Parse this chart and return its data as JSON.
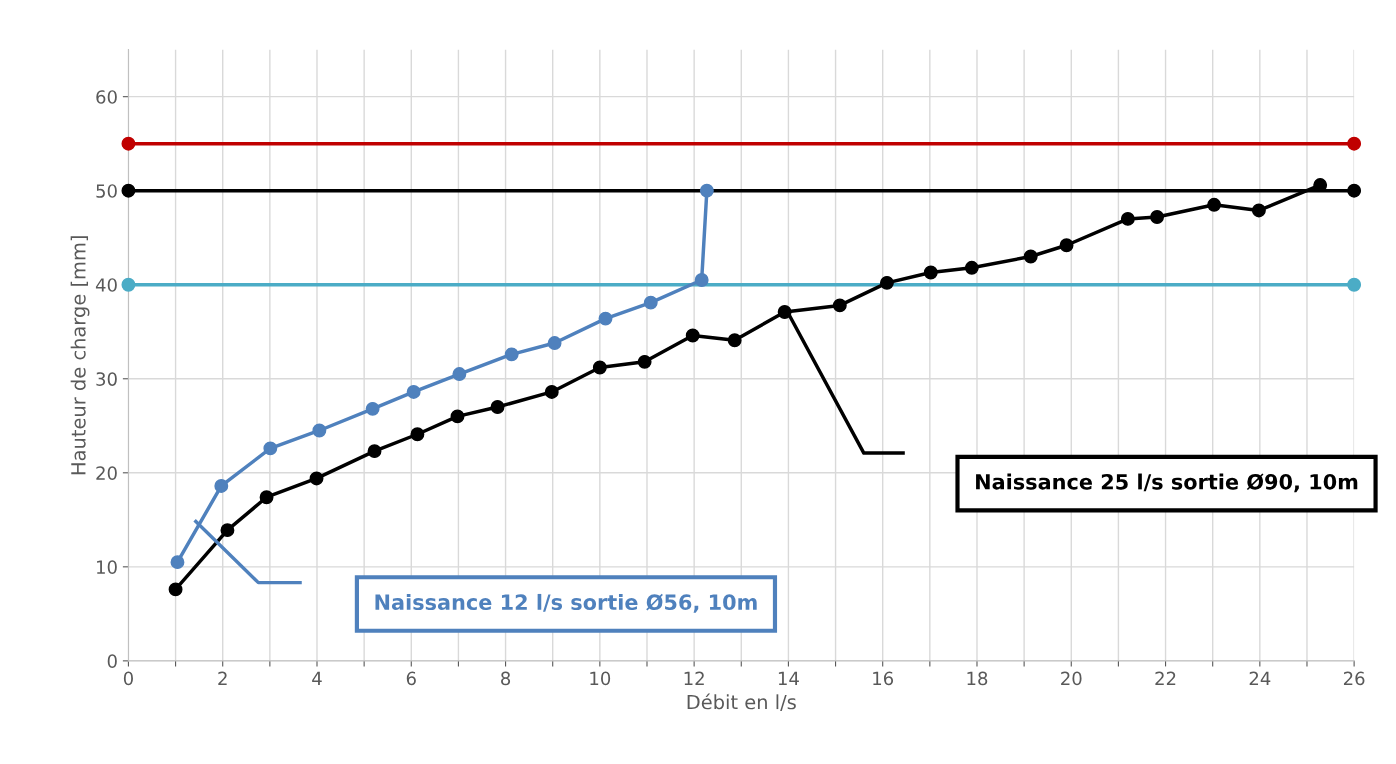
{
  "chart_data": {
    "type": "line",
    "xlabel": "Débit en l/s",
    "ylabel": "Hauteur de charge [mm]",
    "xlim": [
      0,
      26
    ],
    "ylim": [
      0,
      65
    ],
    "xticks": [
      0,
      {
        "value": 1,
        "label": null
      },
      2,
      {
        "value": 3,
        "label": null
      },
      4,
      {
        "value": 5,
        "label": null
      },
      6,
      {
        "value": 7,
        "label": null
      },
      8,
      {
        "value": 9,
        "label": null
      },
      10,
      {
        "value": 11,
        "label": null
      },
      12,
      {
        "value": 13,
        "label": null
      },
      14,
      {
        "value": 15,
        "label": null
      },
      16,
      {
        "value": 17,
        "label": null
      },
      18,
      {
        "value": 19,
        "label": null
      },
      20,
      {
        "value": 21,
        "label": null
      },
      22,
      {
        "value": 23,
        "label": null
      },
      24,
      {
        "value": 25,
        "label": null
      },
      26
    ],
    "yticks": [
      0,
      10,
      20,
      30,
      40,
      50,
      60
    ],
    "grid": true,
    "marker": "circle",
    "line_style": "solid",
    "series": [
      {
        "color": "#c00000",
        "x": [
          0,
          26
        ],
        "values": [
          55,
          55
        ]
      },
      {
        "color": "#000000",
        "x": [
          0,
          26
        ],
        "values": [
          50,
          50
        ]
      },
      {
        "color": "#4bacc6",
        "x": [
          0,
          26
        ],
        "values": [
          40,
          40
        ]
      },
      {
        "color": "#4f81bd",
        "x": [
          1.04,
          1.97,
          3.01,
          4.05,
          5.18,
          6.05,
          7.02,
          8.13,
          9.04,
          10.12,
          11.08,
          12.16,
          12.27
        ],
        "values": [
          10.5,
          18.6,
          22.6,
          24.5,
          26.8,
          28.6,
          30.5,
          32.6,
          33.8,
          36.4,
          38.1,
          40.5,
          50.0
        ]
      },
      {
        "color": "#000000",
        "x": [
          1.0,
          2.1,
          2.93,
          3.99,
          5.22,
          6.13,
          6.98,
          7.83,
          8.98,
          10.0,
          10.95,
          11.97,
          12.86,
          13.92,
          15.09,
          16.09,
          17.02,
          17.89,
          19.14,
          19.9,
          21.2,
          21.82,
          23.03,
          23.98,
          25.28
        ],
        "values": [
          7.6,
          13.9,
          17.4,
          19.4,
          22.3,
          24.1,
          26.0,
          27.0,
          28.6,
          31.2,
          31.8,
          34.6,
          34.1,
          37.1,
          37.8,
          40.2,
          41.3,
          41.8,
          43.0,
          44.2,
          47.0,
          47.2,
          48.5,
          47.9,
          50.6
        ]
      }
    ],
    "annotations": [
      "Naissance 12 l/s sortie Ø56, 10m",
      "Naissance 25 l/s sortie Ø90, 10m"
    ]
  }
}
